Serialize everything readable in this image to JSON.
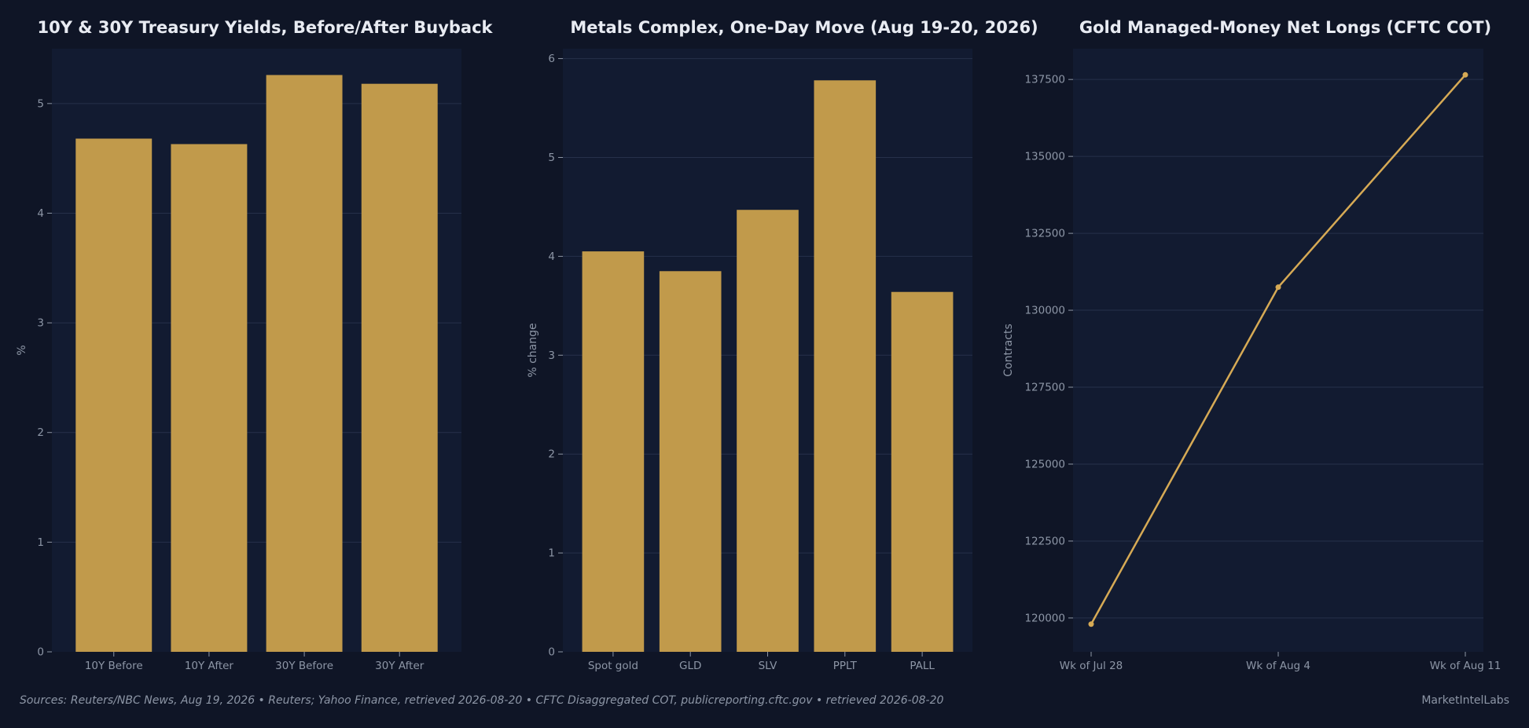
{
  "colors": {
    "background": "#0f1526",
    "panel": "#121b31",
    "grid": "#26304a",
    "bar": "#c19a4b",
    "line": "#d6aa55",
    "title": "#e8ebf2",
    "tick": "#8d96a6"
  },
  "footer": {
    "sources": "Sources: Reuters/NBC News, Aug 19, 2026  •  Reuters; Yahoo Finance, retrieved 2026-08-20  •  CFTC Disaggregated COT, publicreporting.cftc.gov  •  retrieved 2026-08-20",
    "brand": "MarketIntelLabs"
  },
  "chart_data": [
    {
      "type": "bar",
      "title": "10Y & 30Y Treasury Yields, Before/After Buyback",
      "xlabel": "",
      "ylabel": "%",
      "categories": [
        "10Y Before",
        "10Y After",
        "30Y Before",
        "30Y After"
      ],
      "values": [
        4.68,
        4.63,
        5.26,
        5.18
      ],
      "ylim": [
        0,
        5.5
      ],
      "yticks": [
        0,
        1,
        2,
        3,
        4,
        5
      ],
      "grid": true
    },
    {
      "type": "bar",
      "title": "Metals Complex, One-Day Move (Aug 19-20, 2026)",
      "xlabel": "",
      "ylabel": "% change",
      "categories": [
        "Spot gold",
        "GLD",
        "SLV",
        "PPLT",
        "PALL"
      ],
      "values": [
        4.05,
        3.85,
        4.47,
        5.78,
        3.64
      ],
      "ylim": [
        0,
        6.1
      ],
      "yticks": [
        0,
        1,
        2,
        3,
        4,
        5,
        6
      ],
      "grid": true
    },
    {
      "type": "line",
      "title": "Gold Managed-Money Net Longs (CFTC COT)",
      "xlabel": "",
      "ylabel": "Contracts",
      "x": [
        "Wk of Jul 28",
        "Wk of Aug 4",
        "Wk of Aug 11"
      ],
      "values": [
        119800,
        130750,
        137650
      ],
      "ylim": [
        118900,
        138500
      ],
      "yticks": [
        120000,
        122500,
        125000,
        127500,
        130000,
        132500,
        135000,
        137500
      ],
      "grid": true
    }
  ]
}
